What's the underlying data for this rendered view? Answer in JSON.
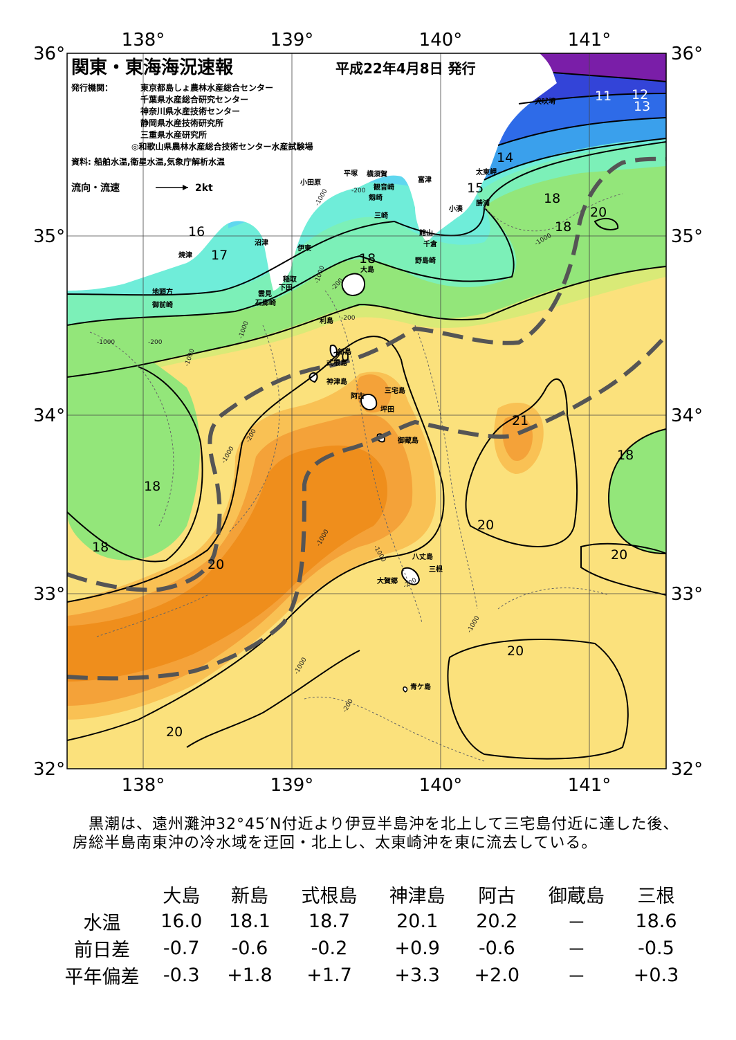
{
  "header": {
    "title": "関東・東海海況速報",
    "date": "平成22年4月8日 発行",
    "agency_label": "発行機関：",
    "agencies": [
      "東京都島しょ農林水産総合センター",
      "千葉県水産総合研究センター",
      "神奈川県水産技術センター",
      "静岡県水産技術研究所",
      "三重県水産研究所",
      "◎和歌山県農林水産総合技術センター水産試験場"
    ],
    "source": "資料: 船舶水温,衛星水温,気象庁解析水温",
    "flow_label": "流向・流速",
    "flow_scale": "2kt"
  },
  "axes": {
    "lon_ticks": [
      "138°",
      "139°",
      "140°",
      "141°"
    ],
    "lat_ticks": [
      "36°",
      "35°",
      "34°",
      "33°",
      "32°"
    ]
  },
  "place_names": [
    "犬吠埼",
    "太東岬",
    "勝浦",
    "小湊",
    "富津",
    "横須賀",
    "観音崎",
    "剱崎",
    "三崎",
    "平塚",
    "小田原",
    "館山",
    "千倉",
    "野島崎",
    "沼津",
    "伊東",
    "焼津",
    "稲取",
    "下田",
    "雲見",
    "石廊崎",
    "地頭方",
    "御前崎",
    "大島",
    "利島",
    "新島",
    "式根島",
    "神津島",
    "阿古",
    "三宅島",
    "坪田",
    "御蔵島",
    "八丈島",
    "三根",
    "大賀郷",
    "青ケ島"
  ],
  "contour_labels": [
    "11",
    "12",
    "13",
    "14",
    "15",
    "16",
    "17",
    "18",
    "18",
    "18",
    "18",
    "18",
    "18",
    "20",
    "20",
    "20",
    "20",
    "20",
    "20",
    "21",
    "20"
  ],
  "depth_labels": [
    "-200",
    "-1000",
    "-200",
    "-1000",
    "-1000",
    "-200",
    "-200",
    "-1000",
    "-1000",
    "-1000",
    "-200",
    "-1000",
    "-1000",
    "-200",
    "-1000",
    "-1000",
    "-1000",
    "-200"
  ],
  "colors": {
    "t11": "#7a1ea8",
    "t12": "#3344d8",
    "t13": "#2e6be8",
    "t14": "#3aa0ec",
    "t15": "#5fd7ef",
    "t16": "#70eedd",
    "t17": "#7cf0b8",
    "t18": "#93e67a",
    "t19": "#bfe870",
    "t20": "#fbe17c",
    "t21": "#f9c154",
    "t22": "#f4a239",
    "t23": "#ef8e1c",
    "land": "#ffffff",
    "kuroshio_axis": "#555555"
  },
  "summary": "　黒潮は、遠州灘沖32°45′N付近より伊豆半島沖を北上して三宅島付近に達した後、房総半島南東沖の冷水域を迂回・北上し、太東崎沖を東に流去している。",
  "table": {
    "stations": [
      "大島",
      "新島",
      "式根島",
      "神津島",
      "阿古",
      "御蔵島",
      "三根"
    ],
    "rows": [
      {
        "label": "水温",
        "values": [
          "16.0",
          "18.1",
          "18.7",
          "20.1",
          "20.2",
          "－",
          "18.6"
        ]
      },
      {
        "label": "前日差",
        "values": [
          "-0.7",
          "-0.6",
          "-0.2",
          "+0.9",
          "-0.6",
          "－",
          "-0.5"
        ]
      },
      {
        "label": "平年偏差",
        "values": [
          "-0.3",
          "+1.8",
          "+1.7",
          "+3.3",
          "+2.0",
          "－",
          "+0.3"
        ]
      }
    ]
  }
}
